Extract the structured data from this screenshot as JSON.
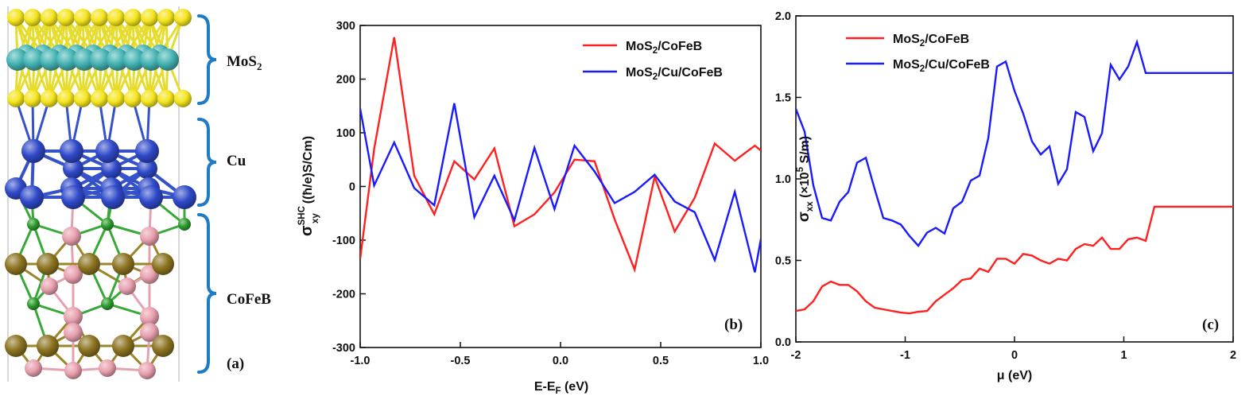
{
  "colors": {
    "series_red": "#ff2020",
    "series_blue": "#1a1aff",
    "brace": "#1e7bc4",
    "cell_edge": "#bfbfbf",
    "atom_S": "#f5e51d",
    "atom_Mo": "#45b3b3",
    "atom_Cu": "#2f49c9",
    "atom_B": "#2c9a2c",
    "atom_Fe": "#e8a0ae",
    "atom_Co": "#8c7420",
    "bond_S": "#e6dc2e",
    "bond_Cu": "#3552c8",
    "bond_B": "#38a838",
    "bond_Fe": "#e4a2ae",
    "bond_Co": "#9c8428"
  },
  "structure": {
    "layers": [
      {
        "main": "MoS",
        "sub": "2",
        "brace_icon": "curly-brace-icon"
      },
      {
        "main": "Cu",
        "sub": "",
        "brace_icon": "curly-brace-icon"
      },
      {
        "main": "CoFeB",
        "sub": "",
        "brace_icon": "curly-brace-icon"
      }
    ],
    "panel_tag": "(a)"
  },
  "chart_data": [
    {
      "type": "line",
      "panel_tag": "(b)",
      "ylabel": {
        "main": "σ",
        "sup": "SHC",
        "sub": "xy",
        "unit": "((ħ/e)S/Cm)"
      },
      "xlabel": {
        "main": "E-E",
        "sub": "F",
        "unit": " (eV)"
      },
      "xlim": [
        -1.0,
        1.0
      ],
      "ylim": [
        -300,
        300
      ],
      "xticks": [
        -1.0,
        -0.5,
        0.0,
        0.5,
        1.0
      ],
      "xtick_labels": [
        "-1.0",
        "-0.5",
        "0.0",
        "0.5",
        "1.0"
      ],
      "yticks": [
        -300,
        -200,
        -100,
        0,
        100,
        200,
        300
      ],
      "ytick_labels": [
        "-300",
        "-200",
        "-100",
        "0",
        "100",
        "200",
        "300"
      ],
      "legend_position": "top-right",
      "grid": false,
      "series": [
        {
          "name": {
            "main": "MoS",
            "sub": "2",
            "rest": "/CoFeB"
          },
          "color": "red",
          "x": [
            -1.0,
            -0.93,
            -0.83,
            -0.73,
            -0.63,
            -0.53,
            -0.43,
            -0.33,
            -0.23,
            -0.13,
            -0.03,
            0.07,
            0.17,
            0.27,
            0.37,
            0.47,
            0.57,
            0.67,
            0.77,
            0.87,
            0.97,
            1.0
          ],
          "y": [
            -135,
            70,
            278,
            20,
            -52,
            47,
            13,
            71,
            -74,
            -52,
            -11,
            50,
            47,
            -61,
            -155,
            18,
            -84,
            -21,
            80,
            48,
            76,
            67
          ]
        },
        {
          "name": {
            "main": "MoS",
            "sub": "2",
            "rest": "/Cu/CoFeB"
          },
          "color": "blue",
          "x": [
            -1.0,
            -0.93,
            -0.83,
            -0.73,
            -0.63,
            -0.53,
            -0.43,
            -0.33,
            -0.23,
            -0.13,
            -0.03,
            0.07,
            0.17,
            0.27,
            0.37,
            0.47,
            0.57,
            0.67,
            0.77,
            0.87,
            0.97,
            1.0
          ],
          "y": [
            145,
            2,
            82,
            -3,
            -35,
            155,
            -57,
            20,
            -63,
            72,
            -42,
            76,
            28,
            -31,
            -10,
            22,
            -28,
            -48,
            -137,
            -10,
            -160,
            -98
          ]
        }
      ]
    },
    {
      "type": "line",
      "panel_tag": "(c)",
      "ylabel": {
        "main": "σ",
        "sub": "xx",
        "unit": " (×10",
        "sup": "5",
        "unit2": " S/m)"
      },
      "xlabel": {
        "main": "μ (eV)"
      },
      "xlim": [
        -2,
        2
      ],
      "ylim": [
        0.0,
        2.0
      ],
      "xticks": [
        -2,
        -1,
        0,
        1,
        2
      ],
      "xtick_labels": [
        "-2",
        "-1",
        "0",
        "1",
        "2"
      ],
      "yticks": [
        0.0,
        0.5,
        1.0,
        1.5,
        2.0
      ],
      "ytick_labels": [
        "0.0",
        "0.5",
        "1.0",
        "1.5",
        "2.0"
      ],
      "legend_position": "top-left",
      "grid": false,
      "series": [
        {
          "name": {
            "main": "MoS",
            "sub": "2",
            "rest": "/CoFeB"
          },
          "color": "red",
          "x": [
            -2.0,
            -1.92,
            -1.84,
            -1.76,
            -1.68,
            -1.6,
            -1.52,
            -1.44,
            -1.36,
            -1.28,
            -1.2,
            -1.12,
            -1.04,
            -0.96,
            -0.88,
            -0.8,
            -0.72,
            -0.64,
            -0.56,
            -0.48,
            -0.4,
            -0.32,
            -0.24,
            -0.16,
            -0.08,
            0.0,
            0.08,
            0.16,
            0.24,
            0.32,
            0.4,
            0.48,
            0.56,
            0.64,
            0.72,
            0.8,
            0.88,
            0.96,
            1.04,
            1.12,
            1.2,
            1.28,
            1.36,
            1.44,
            1.52,
            1.6,
            1.68,
            1.76,
            1.84,
            1.92,
            2.0
          ],
          "y": [
            0.19,
            0.2,
            0.25,
            0.34,
            0.37,
            0.35,
            0.35,
            0.31,
            0.25,
            0.21,
            0.2,
            0.19,
            0.18,
            0.175,
            0.185,
            0.19,
            0.25,
            0.29,
            0.33,
            0.38,
            0.39,
            0.45,
            0.43,
            0.51,
            0.51,
            0.48,
            0.54,
            0.53,
            0.5,
            0.48,
            0.51,
            0.5,
            0.57,
            0.6,
            0.59,
            0.64,
            0.57,
            0.57,
            0.63,
            0.64,
            0.62,
            0.83,
            0.83,
            0.83,
            0.83,
            0.83,
            0.83,
            0.83,
            0.83,
            0.83,
            0.83
          ]
        },
        {
          "name": {
            "main": "MoS",
            "sub": "2",
            "rest": "/Cu/CoFeB"
          },
          "color": "blue",
          "x": [
            -2.0,
            -1.92,
            -1.84,
            -1.76,
            -1.68,
            -1.6,
            -1.52,
            -1.44,
            -1.36,
            -1.28,
            -1.2,
            -1.12,
            -1.04,
            -0.96,
            -0.88,
            -0.8,
            -0.72,
            -0.64,
            -0.56,
            -0.48,
            -0.4,
            -0.32,
            -0.24,
            -0.16,
            -0.08,
            0.0,
            0.08,
            0.16,
            0.24,
            0.32,
            0.4,
            0.48,
            0.56,
            0.64,
            0.72,
            0.8,
            0.88,
            0.96,
            1.04,
            1.12,
            1.2,
            1.28,
            1.36,
            1.44,
            1.52,
            1.6,
            1.68,
            1.76,
            1.84,
            1.92,
            2.0
          ],
          "y": [
            1.43,
            1.29,
            0.96,
            0.76,
            0.745,
            0.86,
            0.92,
            1.1,
            1.13,
            0.94,
            0.76,
            0.745,
            0.72,
            0.65,
            0.59,
            0.67,
            0.7,
            0.665,
            0.82,
            0.86,
            0.99,
            1.02,
            1.25,
            1.69,
            1.72,
            1.54,
            1.4,
            1.23,
            1.15,
            1.2,
            0.97,
            1.06,
            1.41,
            1.38,
            1.17,
            1.28,
            1.7,
            1.61,
            1.69,
            1.84,
            1.65,
            1.65,
            1.65,
            1.65,
            1.65,
            1.65,
            1.65,
            1.65,
            1.65,
            1.65,
            1.65
          ]
        }
      ]
    }
  ]
}
